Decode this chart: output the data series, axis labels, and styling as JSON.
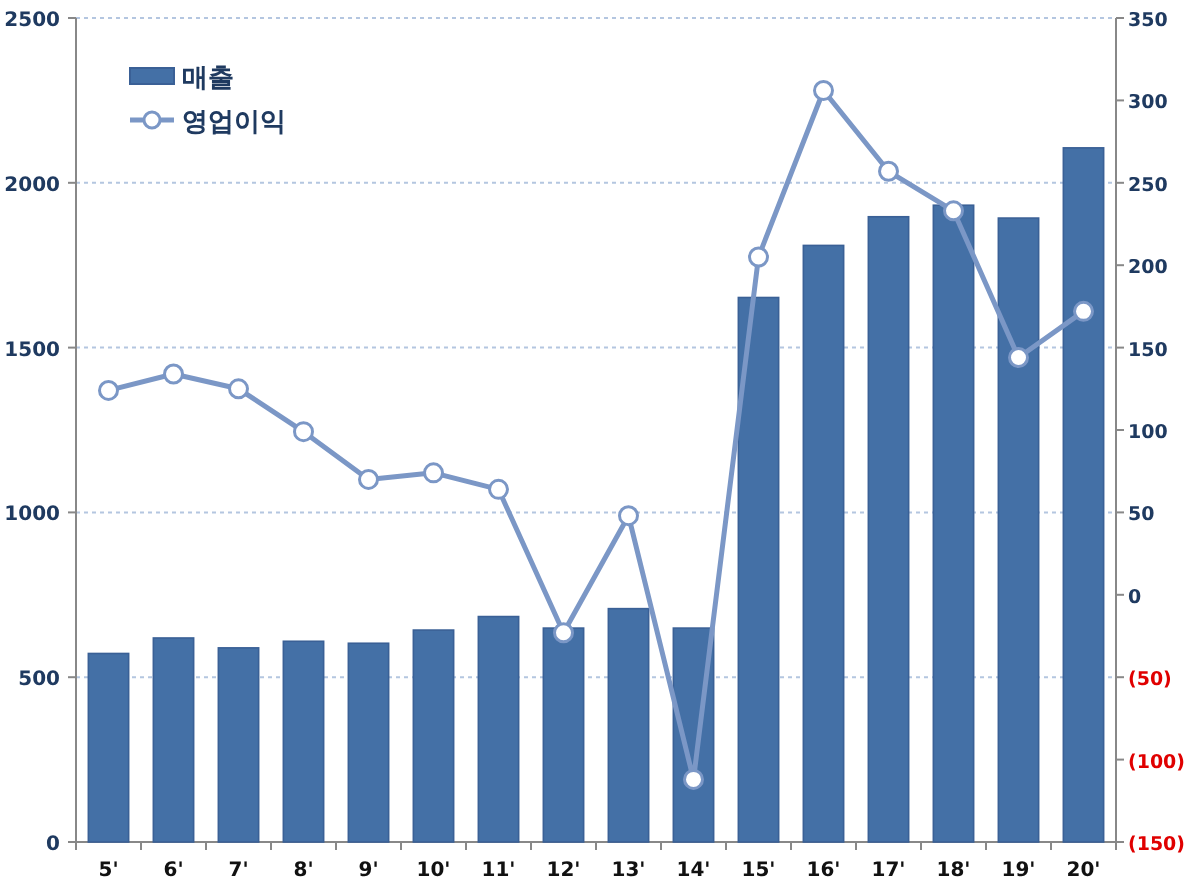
{
  "chart_data": {
    "type": "bar",
    "categories": [
      "5'",
      "6'",
      "7'",
      "8'",
      "9'",
      "10'",
      "11'",
      "12'",
      "13'",
      "14'",
      "15'",
      "16'",
      "17'",
      "18'",
      "19'",
      "20'"
    ],
    "series": [
      {
        "name": "매출",
        "color": "#4470a6",
        "values": [
          572,
          619,
          589,
          609,
          603,
          643,
          684,
          649,
          708,
          649,
          1652,
          1810,
          1897,
          1932,
          1893,
          2106
        ]
      },
      {
        "name": "영업이익",
        "type": "line",
        "axis": "y2",
        "color": "#7b97c6",
        "marker": "circle",
        "values": [
          124,
          134,
          125,
          99,
          70,
          74,
          64,
          -23,
          48,
          -112,
          205,
          306,
          257,
          233,
          144,
          172
        ]
      }
    ],
    "ylim": [
      0,
      2500
    ],
    "yticks": [
      0,
      500,
      1000,
      1500,
      2000,
      2500
    ],
    "y2lim": [
      -150,
      350
    ],
    "y2ticks": [
      {
        "value": -150,
        "label": "(150)"
      },
      {
        "value": -100,
        "label": "(100)"
      },
      {
        "value": -50,
        "label": "(50)"
      },
      0,
      50,
      100,
      150,
      200,
      250,
      300,
      350
    ],
    "grid": "y",
    "legend": "top left"
  }
}
